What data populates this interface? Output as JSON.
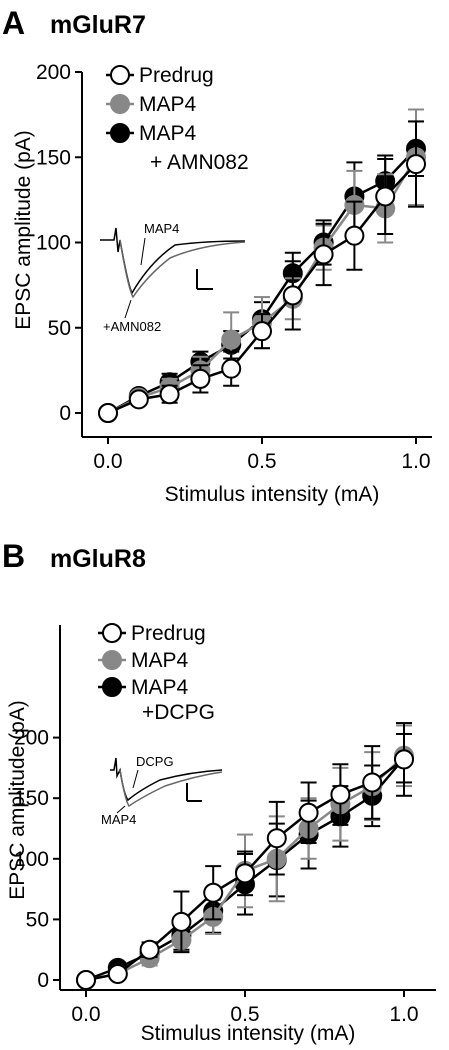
{
  "chart_data": [
    {
      "type": "line",
      "panel_letter": "A",
      "title": "mGluR7",
      "xlabel": "Stimulus intensity (mA)",
      "ylabel": "EPSC amplitude (pA)",
      "xlim": [
        0,
        1.1
      ],
      "ylim": [
        0,
        200
      ],
      "xticks": [
        0.0,
        0.5,
        1.0
      ],
      "xtick_labels": [
        "0.0",
        "0.5",
        "1.0"
      ],
      "yticks": [
        0,
        50,
        100,
        150,
        200
      ],
      "ytick_labels": [
        "0",
        "50",
        "100",
        "150",
        "200"
      ],
      "legend_position": "top-left",
      "x": [
        0,
        0.1,
        0.2,
        0.3,
        0.4,
        0.5,
        0.6,
        0.7,
        0.8,
        0.9,
        1.0
      ],
      "series": [
        {
          "name": "MAP4 + AMN082",
          "legend_lines": [
            "MAP4",
            "+ AMN082"
          ],
          "marker_fill": "#000000",
          "line_color": "#000000",
          "error_color": "#000000",
          "values": [
            0,
            10,
            18,
            30,
            40,
            55,
            82,
            100,
            127,
            136,
            155
          ],
          "errors": [
            0,
            3,
            5,
            6,
            8,
            10,
            12,
            13,
            20,
            15,
            16
          ]
        },
        {
          "name": "MAP4",
          "legend_lines": [
            "MAP4"
          ],
          "marker_fill": "#888888",
          "line_color": "#888888",
          "error_color": "#888888",
          "values": [
            0,
            9,
            15,
            25,
            43,
            53,
            67,
            97,
            122,
            120,
            150
          ],
          "errors": [
            0,
            3,
            5,
            8,
            16,
            15,
            12,
            13,
            20,
            20,
            28
          ]
        },
        {
          "name": "Predrug",
          "legend_lines": [
            "Predrug"
          ],
          "marker_fill": "#ffffff",
          "line_color": "#000000",
          "error_color": "#000000",
          "values": [
            0,
            8,
            11,
            20,
            26,
            48,
            69,
            93,
            104,
            127,
            146
          ],
          "errors": [
            0,
            3,
            5,
            8,
            10,
            10,
            20,
            18,
            20,
            22,
            25
          ]
        }
      ],
      "inset": {
        "labels": [
          "MAP4",
          "+AMN082"
        ]
      }
    },
    {
      "type": "line",
      "panel_letter": "B",
      "title": "mGluR8",
      "xlabel": "Stimulus intensity (mA)",
      "ylabel": "EPSC amplitude (pA)",
      "xlim": [
        0,
        1.1
      ],
      "ylim": [
        0,
        225
      ],
      "xticks": [
        0.0,
        0.5,
        1.0
      ],
      "xtick_labels": [
        "0.0",
        "0.5",
        "1.0"
      ],
      "yticks": [
        0,
        50,
        100,
        150,
        200
      ],
      "ytick_labels": [
        "0",
        "50",
        "100",
        "150",
        "200"
      ],
      "legend_position": "top-left",
      "x": [
        0,
        0.1,
        0.2,
        0.3,
        0.4,
        0.5,
        0.6,
        0.7,
        0.8,
        0.9,
        1.0
      ],
      "series": [
        {
          "name": "MAP4 +DCPG",
          "legend_lines": [
            "MAP4",
            "+DCPG"
          ],
          "marker_fill": "#000000",
          "line_color": "#000000",
          "error_color": "#000000",
          "values": [
            0,
            10,
            22,
            37,
            57,
            79,
            99,
            120,
            135,
            152,
            183
          ],
          "errors": [
            0,
            3,
            5,
            12,
            18,
            25,
            30,
            28,
            25,
            25,
            20
          ]
        },
        {
          "name": "MAP4",
          "legend_lines": [
            "MAP4"
          ],
          "marker_fill": "#888888",
          "line_color": "#888888",
          "error_color": "#888888",
          "values": [
            0,
            5,
            18,
            33,
            52,
            90,
            100,
            125,
            145,
            160,
            185
          ],
          "errors": [
            0,
            3,
            6,
            10,
            14,
            30,
            35,
            25,
            30,
            28,
            25
          ]
        },
        {
          "name": "Predrug",
          "legend_lines": [
            "Predrug"
          ],
          "marker_fill": "#ffffff",
          "line_color": "#000000",
          "error_color": "#000000",
          "values": [
            0,
            5,
            25,
            48,
            72,
            88,
            117,
            138,
            153,
            163,
            182
          ],
          "errors": [
            0,
            3,
            6,
            25,
            22,
            18,
            30,
            25,
            25,
            30,
            30
          ]
        }
      ],
      "inset": {
        "labels": [
          "DCPG",
          "MAP4"
        ]
      }
    }
  ]
}
